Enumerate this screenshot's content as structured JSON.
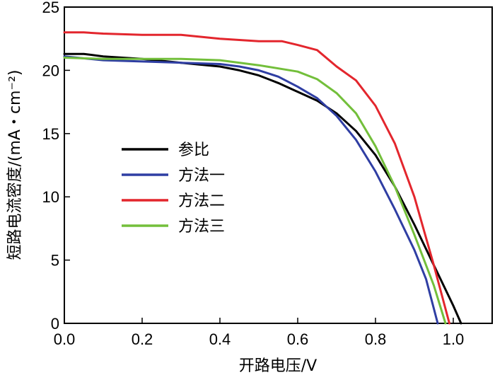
{
  "chart_data": {
    "type": "line",
    "xlabel": "开路电压/V",
    "ylabel": "短路电流密度/(mA・cm⁻²)",
    "xlim": [
      0,
      1.1
    ],
    "ylim": [
      0,
      25
    ],
    "x_ticks": [
      "0.0",
      "0.2",
      "0.4",
      "0.6",
      "0.8",
      "1.0"
    ],
    "y_ticks": [
      "0",
      "5",
      "10",
      "15",
      "20",
      "25"
    ],
    "legend_position": "center-left",
    "grid": false,
    "series": [
      {
        "name": "参比",
        "color": "#000000",
        "points": [
          [
            0,
            21.3
          ],
          [
            0.05,
            21.3
          ],
          [
            0.1,
            21.1
          ],
          [
            0.2,
            20.9
          ],
          [
            0.3,
            20.6
          ],
          [
            0.4,
            20.3
          ],
          [
            0.45,
            20.0
          ],
          [
            0.5,
            19.6
          ],
          [
            0.55,
            19.0
          ],
          [
            0.6,
            18.3
          ],
          [
            0.65,
            17.6
          ],
          [
            0.7,
            16.6
          ],
          [
            0.75,
            15.2
          ],
          [
            0.8,
            13.3
          ],
          [
            0.85,
            10.8
          ],
          [
            0.9,
            7.8
          ],
          [
            0.95,
            4.6
          ],
          [
            1.0,
            1.4
          ],
          [
            1.02,
            0
          ]
        ]
      },
      {
        "name": "方法一",
        "color": "#2f3ea3",
        "points": [
          [
            0,
            21.1
          ],
          [
            0.1,
            20.8
          ],
          [
            0.2,
            20.7
          ],
          [
            0.3,
            20.6
          ],
          [
            0.4,
            20.5
          ],
          [
            0.45,
            20.3
          ],
          [
            0.5,
            20.0
          ],
          [
            0.55,
            19.5
          ],
          [
            0.6,
            18.7
          ],
          [
            0.65,
            17.8
          ],
          [
            0.7,
            16.4
          ],
          [
            0.75,
            14.5
          ],
          [
            0.8,
            12.0
          ],
          [
            0.85,
            9.0
          ],
          [
            0.9,
            5.8
          ],
          [
            0.93,
            3.5
          ],
          [
            0.96,
            0
          ]
        ]
      },
      {
        "name": "方法二",
        "color": "#e3262d",
        "points": [
          [
            0,
            23.0
          ],
          [
            0.05,
            23.0
          ],
          [
            0.1,
            22.9
          ],
          [
            0.2,
            22.8
          ],
          [
            0.3,
            22.8
          ],
          [
            0.4,
            22.5
          ],
          [
            0.5,
            22.3
          ],
          [
            0.56,
            22.3
          ],
          [
            0.6,
            22.0
          ],
          [
            0.65,
            21.6
          ],
          [
            0.7,
            20.3
          ],
          [
            0.75,
            19.2
          ],
          [
            0.8,
            17.2
          ],
          [
            0.85,
            14.2
          ],
          [
            0.9,
            10.0
          ],
          [
            0.95,
            4.6
          ],
          [
            0.99,
            0
          ]
        ]
      },
      {
        "name": "方法三",
        "color": "#73bf3b",
        "points": [
          [
            0,
            21.0
          ],
          [
            0.1,
            20.9
          ],
          [
            0.2,
            20.9
          ],
          [
            0.3,
            20.9
          ],
          [
            0.4,
            20.8
          ],
          [
            0.5,
            20.4
          ],
          [
            0.6,
            19.9
          ],
          [
            0.65,
            19.3
          ],
          [
            0.7,
            18.2
          ],
          [
            0.75,
            16.6
          ],
          [
            0.8,
            14.0
          ],
          [
            0.85,
            10.8
          ],
          [
            0.9,
            7.0
          ],
          [
            0.95,
            3.0
          ],
          [
            0.98,
            0
          ]
        ]
      }
    ]
  }
}
